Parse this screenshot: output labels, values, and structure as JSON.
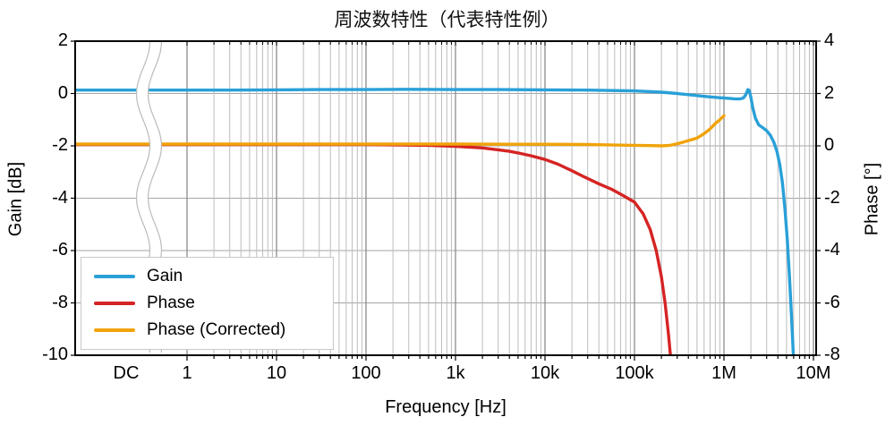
{
  "title": "周波数特性（代表特性例）",
  "chart_data": {
    "type": "line",
    "title": "周波数特性（代表特性例）",
    "xlabel": "Frequency [Hz]",
    "ylabel_left": "Gain [dB]",
    "ylabel_right": "Phase [°]",
    "x_scale": "log",
    "x_tick_labels": [
      "DC",
      "1",
      "10",
      "100",
      "1k",
      "10k",
      "100k",
      "1M",
      "10M"
    ],
    "x_range_hz": [
      "DC",
      10000000
    ],
    "axis_break": {
      "present": true,
      "between": [
        "DC",
        "1"
      ]
    },
    "y_left": {
      "label": "Gain [dB]",
      "min": -10,
      "max": 2,
      "ticks": [
        2,
        0,
        -2,
        -4,
        -6,
        -8,
        -10
      ]
    },
    "y_right": {
      "label": "Phase [°]",
      "min": -8,
      "max": 4,
      "ticks": [
        4,
        2,
        0,
        -2,
        -4,
        -6,
        -8
      ]
    },
    "grid": {
      "major_vertical": true,
      "minor_vertical_log": true,
      "horizontal_every_2": true
    },
    "legend": {
      "position": "bottom-left",
      "entries": [
        "Gain",
        "Phase",
        "Phase (Corrected)"
      ]
    },
    "series": [
      {
        "name": "Gain",
        "axis": "left",
        "unit": "dB",
        "color": "#29a0d8",
        "points": [
          [
            "DC",
            0.13
          ],
          [
            1,
            0.13
          ],
          [
            3,
            0.13
          ],
          [
            10,
            0.14
          ],
          [
            30,
            0.15
          ],
          [
            100,
            0.15
          ],
          [
            300,
            0.16
          ],
          [
            1000,
            0.15
          ],
          [
            3000,
            0.15
          ],
          [
            10000,
            0.14
          ],
          [
            30000,
            0.13
          ],
          [
            100000,
            0.1
          ],
          [
            200000,
            0.05
          ],
          [
            300000,
            0.0
          ],
          [
            500000,
            -0.08
          ],
          [
            700000,
            -0.13
          ],
          [
            900000,
            -0.16
          ],
          [
            1100000,
            -0.18
          ],
          [
            1300000,
            -0.2
          ],
          [
            1500000,
            -0.21
          ],
          [
            1650000,
            -0.17
          ],
          [
            1750000,
            -0.05
          ],
          [
            1850000,
            0.15
          ],
          [
            1920000,
            0.12
          ],
          [
            2000000,
            -0.15
          ],
          [
            2100000,
            -0.55
          ],
          [
            2250000,
            -0.95
          ],
          [
            2450000,
            -1.2
          ],
          [
            2700000,
            -1.3
          ],
          [
            3000000,
            -1.42
          ],
          [
            3300000,
            -1.6
          ],
          [
            3600000,
            -1.85
          ],
          [
            3900000,
            -2.2
          ],
          [
            4200000,
            -2.7
          ],
          [
            4500000,
            -3.4
          ],
          [
            4800000,
            -4.4
          ],
          [
            5100000,
            -5.6
          ],
          [
            5400000,
            -7.0
          ],
          [
            5700000,
            -8.6
          ],
          [
            6000000,
            -10.2
          ],
          [
            6200000,
            -11.0
          ]
        ]
      },
      {
        "name": "Phase",
        "axis": "right",
        "unit": "deg",
        "color": "#d62323",
        "points": [
          [
            "DC",
            0.05
          ],
          [
            1,
            0.05
          ],
          [
            10,
            0.05
          ],
          [
            100,
            0.05
          ],
          [
            500,
            0.02
          ],
          [
            1000,
            -0.02
          ],
          [
            1500,
            -0.05
          ],
          [
            2000,
            -0.08
          ],
          [
            3000,
            -0.15
          ],
          [
            4000,
            -0.21
          ],
          [
            5000,
            -0.27
          ],
          [
            7000,
            -0.38
          ],
          [
            10000,
            -0.52
          ],
          [
            14000,
            -0.7
          ],
          [
            20000,
            -0.95
          ],
          [
            28000,
            -1.2
          ],
          [
            40000,
            -1.45
          ],
          [
            55000,
            -1.65
          ],
          [
            75000,
            -1.9
          ],
          [
            100000,
            -2.15
          ],
          [
            125000,
            -2.6
          ],
          [
            150000,
            -3.2
          ],
          [
            175000,
            -4.0
          ],
          [
            200000,
            -5.0
          ],
          [
            220000,
            -6.0
          ],
          [
            240000,
            -7.2
          ],
          [
            255000,
            -8.2
          ],
          [
            265000,
            -9.0
          ]
        ]
      },
      {
        "name": "Phase (Corrected)",
        "axis": "right",
        "unit": "deg",
        "color": "#f0a30a",
        "points": [
          [
            "DC",
            0.07
          ],
          [
            1,
            0.07
          ],
          [
            10,
            0.07
          ],
          [
            100,
            0.07
          ],
          [
            1000,
            0.07
          ],
          [
            5000,
            0.06
          ],
          [
            10000,
            0.06
          ],
          [
            30000,
            0.05
          ],
          [
            60000,
            0.03
          ],
          [
            100000,
            0.02
          ],
          [
            150000,
            0.01
          ],
          [
            200000,
            0.0
          ],
          [
            250000,
            0.02
          ],
          [
            300000,
            0.08
          ],
          [
            350000,
            0.14
          ],
          [
            400000,
            0.2
          ],
          [
            450000,
            0.25
          ],
          [
            500000,
            0.3
          ],
          [
            560000,
            0.4
          ],
          [
            630000,
            0.52
          ],
          [
            700000,
            0.65
          ],
          [
            800000,
            0.85
          ],
          [
            900000,
            1.0
          ],
          [
            1000000,
            1.15
          ]
        ]
      }
    ],
    "colors": {
      "axis": "#000000",
      "grid_major": "#8c8c8c",
      "grid_minor": "#bdbdbd",
      "grid_horizontal": "#a5a5a5",
      "break_band_edge": "#bbbbbb",
      "background": "#ffffff"
    }
  }
}
